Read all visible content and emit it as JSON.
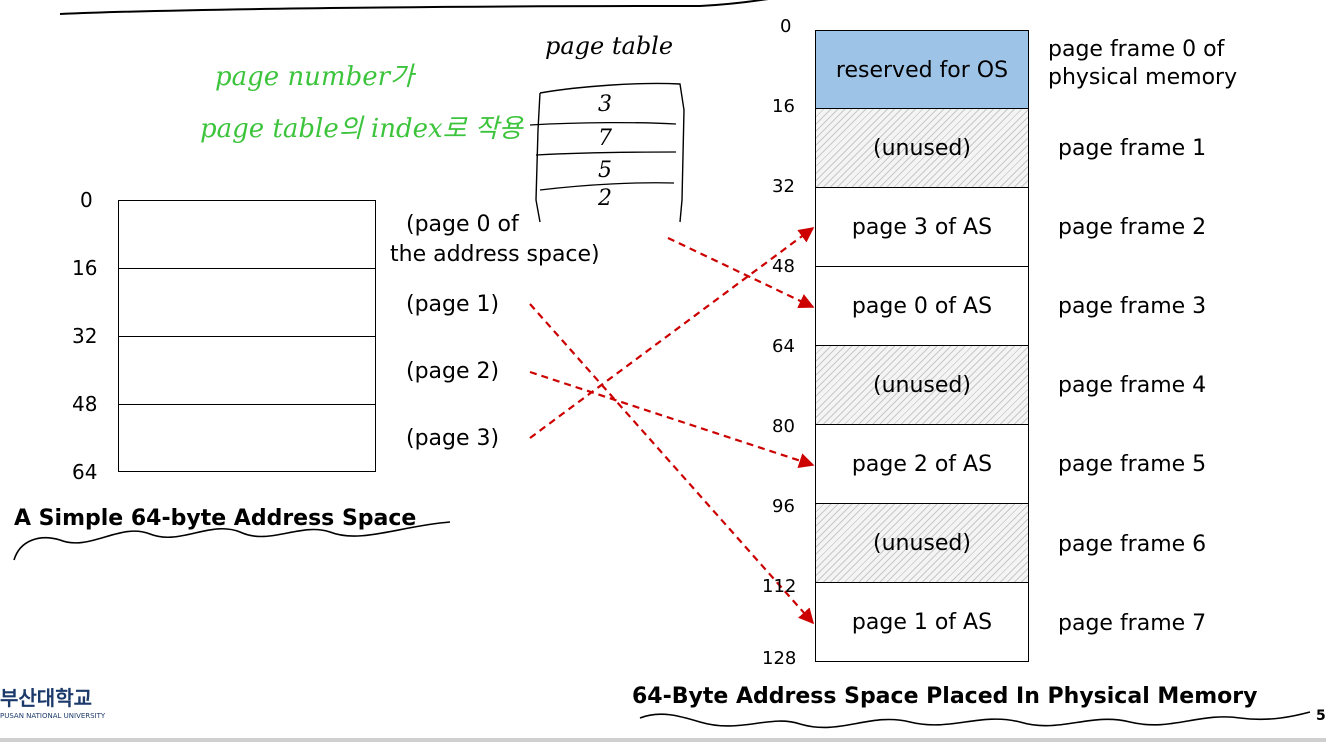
{
  "left_space": {
    "offsets": [
      "0",
      "16",
      "32",
      "48",
      "64"
    ],
    "page_labels": [
      "(page 0 of",
      "the address space)",
      "(page 1)",
      "(page 2)",
      "(page 3)"
    ],
    "caption": "A Simple 64-byte Address Space"
  },
  "physical_memory": {
    "offsets": [
      "0",
      "16",
      "32",
      "48",
      "64",
      "80",
      "96",
      "112",
      "128"
    ],
    "frames": [
      {
        "content": "reserved for OS",
        "kind": "os",
        "name_lines": [
          "page frame 0 of",
          "physical memory"
        ]
      },
      {
        "content": "(unused)",
        "kind": "unused",
        "name_lines": [
          "page frame 1"
        ]
      },
      {
        "content": "page 3 of AS",
        "kind": "page",
        "name_lines": [
          "page frame 2"
        ]
      },
      {
        "content": "page 0 of AS",
        "kind": "page",
        "name_lines": [
          "page frame 3"
        ]
      },
      {
        "content": "(unused)",
        "kind": "unused",
        "name_lines": [
          "page frame 4"
        ]
      },
      {
        "content": "page 2 of AS",
        "kind": "page",
        "name_lines": [
          "page frame 5"
        ]
      },
      {
        "content": "(unused)",
        "kind": "unused",
        "name_lines": [
          "page frame 6"
        ]
      },
      {
        "content": "page 1 of AS",
        "kind": "page",
        "name_lines": [
          "page frame 7"
        ]
      }
    ],
    "caption": "64-Byte Address Space Placed In Physical Memory"
  },
  "annotations": {
    "handwritten_green_line1": "page number가",
    "handwritten_green_line2": "page table의 index로 작용",
    "page_table_title": "page table",
    "page_table_entries": [
      "3",
      "7",
      "5",
      "2"
    ],
    "colors": {
      "handwriting": "#3cc43c",
      "arrows": "#cc0000",
      "os_frame": "#9dc3e6"
    }
  },
  "mapping": [
    {
      "page": 0,
      "frame": 3
    },
    {
      "page": 1,
      "frame": 7
    },
    {
      "page": 2,
      "frame": 5
    },
    {
      "page": 3,
      "frame": 2
    }
  ],
  "footer": {
    "university_logo_text": "부산대학교",
    "university_logo_sub": "PUSAN NATIONAL UNIVERSITY",
    "page_number": "5"
  }
}
